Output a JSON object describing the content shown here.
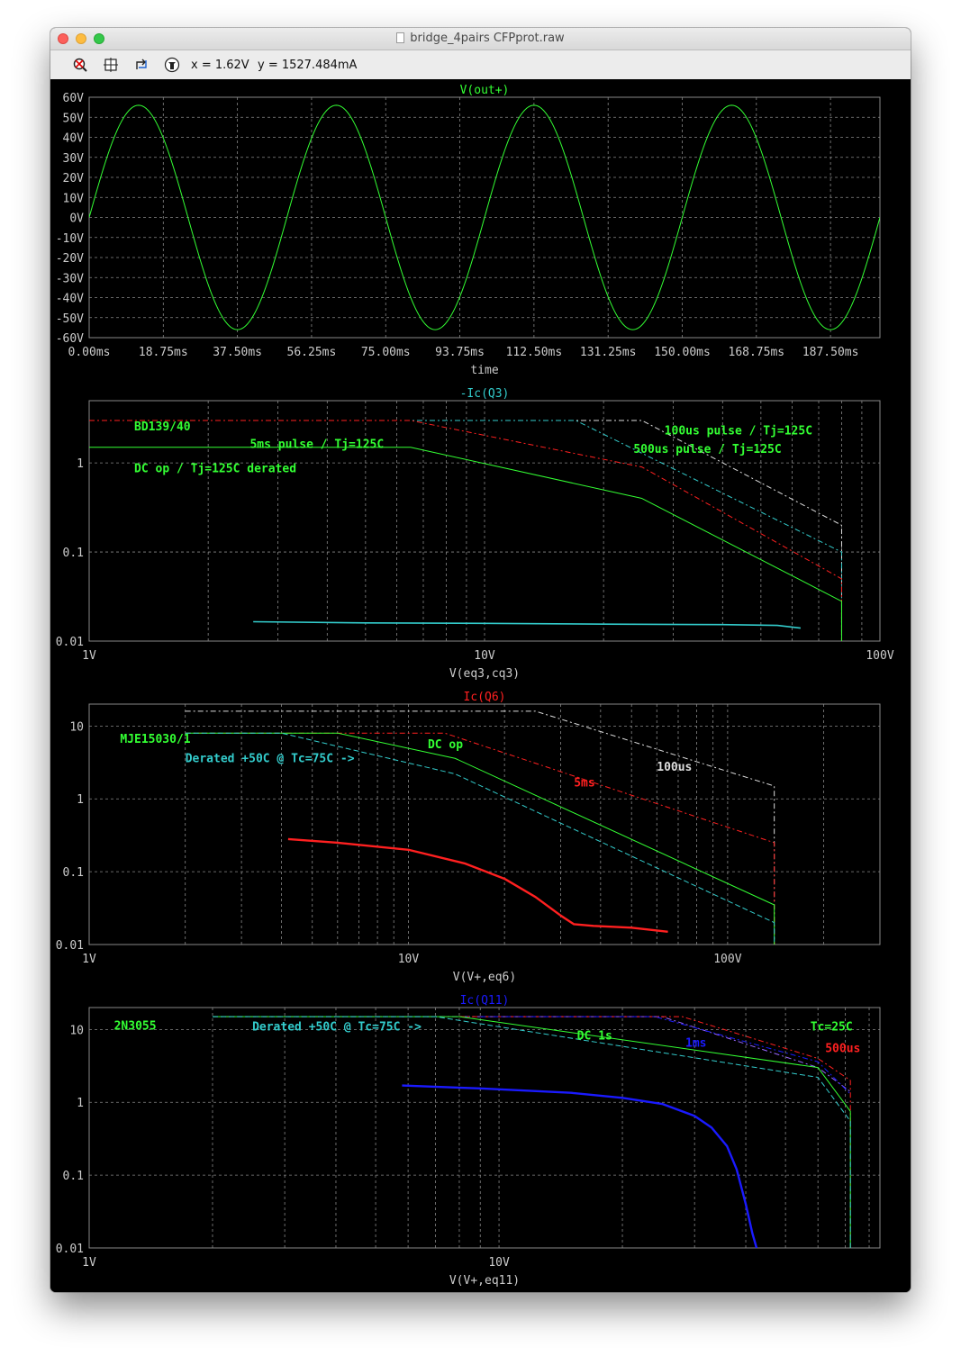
{
  "window": {
    "title": "bridge_4pairs CFPprot.raw"
  },
  "toolbar": {
    "icons": [
      "zoom-cancel-icon",
      "autorange-icon",
      "pan-icon",
      "probe-icon"
    ],
    "x_readout": "x = 1.62V",
    "y_readout": "y = 1527.484mA"
  },
  "colors": {
    "background": "#000000",
    "grid": "#888888",
    "axis_text": "#cccccc",
    "green": "#33ff33",
    "cyan": "#33cccc",
    "red": "#ff2020",
    "white": "#dddddd",
    "blue": "#1a1aff",
    "purple": "#9966ff"
  },
  "chart_data": [
    {
      "type": "line",
      "title": "V(out+)",
      "title_color": "#33ff33",
      "xlabel": "time",
      "xscale": "linear",
      "yscale": "linear",
      "xlim": [
        0,
        200
      ],
      "ylim": [
        -60,
        60
      ],
      "xticks": [
        0,
        18.75,
        37.5,
        56.25,
        75,
        93.75,
        112.5,
        131.25,
        150,
        168.75,
        187.5
      ],
      "xticklabels": [
        "0.00ms",
        "18.75ms",
        "37.50ms",
        "56.25ms",
        "75.00ms",
        "93.75ms",
        "112.50ms",
        "131.25ms",
        "150.00ms",
        "168.75ms",
        "187.50ms"
      ],
      "yticks": [
        60,
        50,
        40,
        30,
        20,
        10,
        0,
        -10,
        -20,
        -30,
        -40,
        -50,
        -60
      ],
      "yticklabels": [
        "60V",
        "50V",
        "40V",
        "30V",
        "20V",
        "10V",
        "0V",
        "-10V",
        "-20V",
        "-30V",
        "-40V",
        "-50V",
        "-60V"
      ],
      "grid": true,
      "series": [
        {
          "color": "#33ff33",
          "width": 1,
          "dash": "",
          "function": "sine",
          "amplitude": 56,
          "period": 50,
          "phase_start": 0,
          "x": [
            0,
            200
          ]
        }
      ],
      "annotations": []
    },
    {
      "type": "line",
      "title": "-Ic(Q3)",
      "title_color": "#33cccc",
      "xlabel": "V(eq3,cq3)",
      "xscale": "log",
      "yscale": "log",
      "xlim": [
        1,
        100
      ],
      "ylim": [
        0.01,
        5
      ],
      "xticks": [
        1,
        10,
        100
      ],
      "xticklabels": [
        "1V",
        "10V",
        "100V"
      ],
      "yticks": [
        1,
        0.1,
        0.01
      ],
      "yticklabels": [
        "1",
        "0.1",
        "0.01"
      ],
      "grid": true,
      "series": [
        {
          "color": "#dddddd",
          "width": 1,
          "dash": "6 3 2 3",
          "x": [
            1,
            25,
            80,
            80
          ],
          "y": [
            3,
            3,
            0.2,
            0.01
          ]
        },
        {
          "color": "#33cccc",
          "width": 1,
          "dash": "6 3 2 3",
          "x": [
            1,
            17,
            80,
            80
          ],
          "y": [
            3,
            3,
            0.1,
            0.01
          ]
        },
        {
          "color": "#ff2020",
          "width": 1,
          "dash": "6 3 2 3",
          "x": [
            1,
            6.5,
            25,
            80,
            80
          ],
          "y": [
            3,
            3,
            0.9,
            0.05,
            0.01
          ]
        },
        {
          "color": "#33ff33",
          "width": 1,
          "dash": "",
          "x": [
            1,
            6.5,
            25,
            80,
            80
          ],
          "y": [
            1.5,
            1.5,
            0.4,
            0.028,
            0.01
          ]
        },
        {
          "color": "#33cccc",
          "width": 1.6,
          "dash": "",
          "x": [
            2.6,
            5,
            10,
            20,
            40,
            55,
            63
          ],
          "y": [
            0.0165,
            0.016,
            0.0158,
            0.0155,
            0.0153,
            0.015,
            0.014
          ]
        }
      ],
      "annotations": [
        {
          "text": "BD139/40",
          "color": "#33ff33",
          "x": 1.3,
          "y": 2.6
        },
        {
          "text": "5ms pulse / Tj=125C",
          "color": "#33ff33",
          "x": 2.55,
          "y": 1.65
        },
        {
          "text": "DC op / Tj=125C derated",
          "color": "#33ff33",
          "x": 1.3,
          "y": 0.88
        },
        {
          "text": "100us pulse / Tj=125C",
          "color": "#33ff33",
          "x": 28.5,
          "y": 2.35
        },
        {
          "text": "500us pulse / Tj=125C",
          "color": "#33ff33",
          "x": 23.8,
          "y": 1.45
        }
      ]
    },
    {
      "type": "line",
      "title": "Ic(Q6)",
      "title_color": "#ff2020",
      "xlabel": "V(V+,eq6)",
      "xscale": "log",
      "yscale": "log",
      "xlim": [
        1,
        300
      ],
      "ylim": [
        0.01,
        20
      ],
      "xticks": [
        1,
        10,
        100
      ],
      "xticklabels": [
        "1V",
        "10V",
        "100V"
      ],
      "yticks": [
        10,
        1,
        0.1,
        0.01
      ],
      "yticklabels": [
        "10",
        "1",
        "0.1",
        "0.01"
      ],
      "grid": true,
      "series": [
        {
          "color": "#dddddd",
          "width": 1,
          "dash": "6 3 2 3",
          "x": [
            2,
            25,
            140,
            140
          ],
          "y": [
            16,
            16,
            1.5,
            0.01
          ]
        },
        {
          "color": "#ff2020",
          "width": 1,
          "dash": "6 3 2 3",
          "x": [
            2,
            13,
            140,
            140
          ],
          "y": [
            8,
            8,
            0.25,
            0.01
          ]
        },
        {
          "color": "#33ff33",
          "width": 1,
          "dash": "",
          "x": [
            2,
            6,
            14,
            140,
            140
          ],
          "y": [
            8,
            8,
            3.6,
            0.035,
            0.01
          ]
        },
        {
          "color": "#33cccc",
          "width": 1,
          "dash": "6 3",
          "x": [
            2,
            4,
            14,
            140,
            140
          ],
          "y": [
            8,
            8,
            2.2,
            0.02,
            0.01
          ]
        },
        {
          "color": "#ff2020",
          "width": 2.4,
          "dash": "",
          "x": [
            4.2,
            6,
            10,
            15,
            20,
            25,
            30,
            33,
            38,
            50,
            65
          ],
          "y": [
            0.28,
            0.25,
            0.2,
            0.13,
            0.08,
            0.045,
            0.025,
            0.019,
            0.018,
            0.017,
            0.015
          ]
        }
      ],
      "annotations": [
        {
          "text": "MJE15030/1",
          "color": "#33ff33",
          "x": 1.25,
          "y": 6.8
        },
        {
          "text": "DC op",
          "color": "#33ff33",
          "x": 11.5,
          "y": 5.7
        },
        {
          "text": "Derated +50C @ Tc=75C ->",
          "color": "#33cccc",
          "x": 2.0,
          "y": 3.7
        },
        {
          "text": "100us",
          "color": "#dddddd",
          "x": 60,
          "y": 2.8
        },
        {
          "text": "5ms",
          "color": "#ff2020",
          "x": 33,
          "y": 1.7
        }
      ]
    },
    {
      "type": "line",
      "title": "Ic(Q11)",
      "title_color": "#1a1aff",
      "xlabel": "V(V+,eq11)",
      "xscale": "log",
      "yscale": "log",
      "xlim": [
        1,
        85
      ],
      "ylim": [
        0.01,
        20
      ],
      "xticks": [
        1,
        10
      ],
      "xticklabels": [
        "1V",
        "10V"
      ],
      "yticks": [
        10,
        1,
        0.1,
        0.01
      ],
      "yticklabels": [
        "10",
        "1",
        "0.1",
        "0.01"
      ],
      "grid": true,
      "series": [
        {
          "color": "#9966ff",
          "width": 1,
          "dash": "6 3 2 3",
          "x": [
            2,
            25,
            60,
            72
          ],
          "y": [
            15,
            15,
            3,
            1.4
          ]
        },
        {
          "color": "#ff2020",
          "width": 1,
          "dash": "6 3 2 3",
          "x": [
            8,
            28,
            60,
            72,
            72
          ],
          "y": [
            15,
            15,
            4,
            2,
            0.01
          ]
        },
        {
          "color": "#1a1aff",
          "width": 1,
          "dash": "6 3 2 3",
          "x": [
            9,
            24,
            60,
            72
          ],
          "y": [
            15,
            15,
            3.6,
            1.3
          ]
        },
        {
          "color": "#33ff33",
          "width": 1,
          "dash": "",
          "x": [
            2,
            8,
            60,
            72,
            72
          ],
          "y": [
            15,
            15,
            3,
            0.75,
            0.01
          ]
        },
        {
          "color": "#33cccc",
          "width": 1,
          "dash": "6 3",
          "x": [
            2,
            7,
            60,
            72,
            72
          ],
          "y": [
            15,
            15,
            2.2,
            0.55,
            0.01
          ]
        },
        {
          "color": "#1a1aff",
          "width": 2.4,
          "dash": "",
          "x": [
            5.8,
            9,
            15,
            20,
            25,
            30,
            33,
            36,
            38,
            40,
            41.5,
            42.5
          ],
          "y": [
            1.7,
            1.55,
            1.35,
            1.15,
            0.95,
            0.65,
            0.45,
            0.25,
            0.12,
            0.04,
            0.016,
            0.01
          ]
        }
      ],
      "annotations": [
        {
          "text": "2N3055",
          "color": "#33ff33",
          "x": 1.15,
          "y": 11.5
        },
        {
          "text": "Derated +50C @ Tc=75C ->",
          "color": "#33cccc",
          "x": 2.5,
          "y": 11.2
        },
        {
          "text": "DC 1s",
          "color": "#33ff33",
          "x": 15.5,
          "y": 8.4
        },
        {
          "text": "1ms",
          "color": "#1a1aff",
          "x": 28.5,
          "y": 6.7
        },
        {
          "text": "Tc=25C",
          "color": "#33ff33",
          "x": 57.5,
          "y": 11.2
        },
        {
          "text": "500us",
          "color": "#ff2020",
          "x": 62.5,
          "y": 5.6
        }
      ]
    }
  ]
}
